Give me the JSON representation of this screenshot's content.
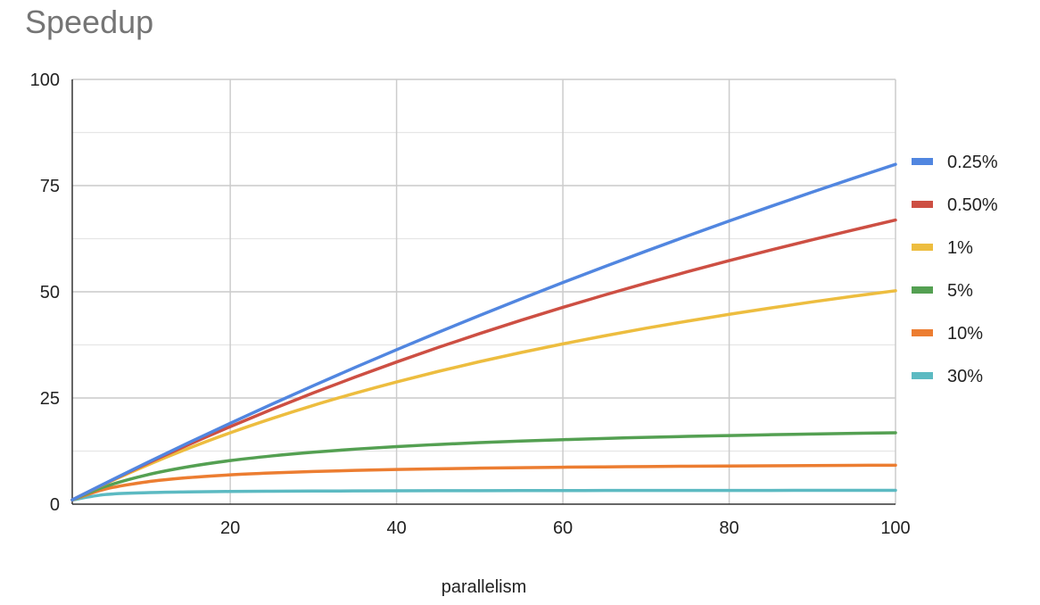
{
  "chart_data": {
    "type": "line",
    "title": "Speedup",
    "xlabel": "parallelism",
    "ylabel": "",
    "xlim": [
      1,
      100
    ],
    "ylim": [
      0,
      100
    ],
    "xticks": [
      20,
      40,
      60,
      80,
      100
    ],
    "yticks": [
      0,
      25,
      50,
      75,
      100
    ],
    "grid": true,
    "legend_position": "right",
    "x": [
      1,
      5,
      10,
      15,
      20,
      25,
      30,
      35,
      40,
      45,
      50,
      55,
      60,
      65,
      70,
      75,
      80,
      85,
      90,
      95,
      100
    ],
    "series": [
      {
        "name": "0.25%",
        "color": "#5186e0",
        "values": [
          1.0,
          4.95,
          9.78,
          14.48,
          19.05,
          23.53,
          27.9,
          32.18,
          36.36,
          40.45,
          44.44,
          48.35,
          52.17,
          55.91,
          59.57,
          63.16,
          66.67,
          70.1,
          73.47,
          76.77,
          80.0
        ]
      },
      {
        "name": "0.50%",
        "color": "#cd4f43",
        "values": [
          1.0,
          4.9,
          9.57,
          14.02,
          18.26,
          22.32,
          26.2,
          29.91,
          33.47,
          36.89,
          40.16,
          43.31,
          46.33,
          49.24,
          52.04,
          54.73,
          57.33,
          59.84,
          62.26,
          64.59,
          66.89
        ]
      },
      {
        "name": "1%",
        "color": "#edbd3f",
        "values": [
          1.0,
          4.81,
          9.17,
          13.16,
          16.81,
          20.16,
          23.26,
          26.12,
          28.78,
          31.25,
          33.56,
          35.71,
          37.74,
          39.63,
          41.42,
          43.1,
          44.69,
          46.19,
          47.62,
          48.97,
          50.25
        ]
      },
      {
        "name": "5%",
        "color": "#54a052",
        "values": [
          1.0,
          4.17,
          6.9,
          8.82,
          10.26,
          11.36,
          12.24,
          12.96,
          13.56,
          14.06,
          14.49,
          14.86,
          15.19,
          15.48,
          15.73,
          15.96,
          16.16,
          16.35,
          16.51,
          16.67,
          16.81
        ]
      },
      {
        "name": "10%",
        "color": "#ec7d31",
        "values": [
          1.0,
          3.57,
          5.26,
          6.25,
          6.9,
          7.35,
          7.69,
          7.95,
          8.16,
          8.33,
          8.47,
          8.59,
          8.7,
          8.78,
          8.86,
          8.93,
          8.99,
          9.04,
          9.09,
          9.14,
          9.17
        ]
      },
      {
        "name": "30%",
        "color": "#5cbac2",
        "values": [
          1.0,
          2.27,
          2.7,
          2.88,
          2.99,
          3.05,
          3.09,
          3.12,
          3.15,
          3.17,
          3.18,
          3.2,
          3.21,
          3.22,
          3.23,
          3.23,
          3.24,
          3.24,
          3.25,
          3.25,
          3.26
        ]
      }
    ]
  }
}
